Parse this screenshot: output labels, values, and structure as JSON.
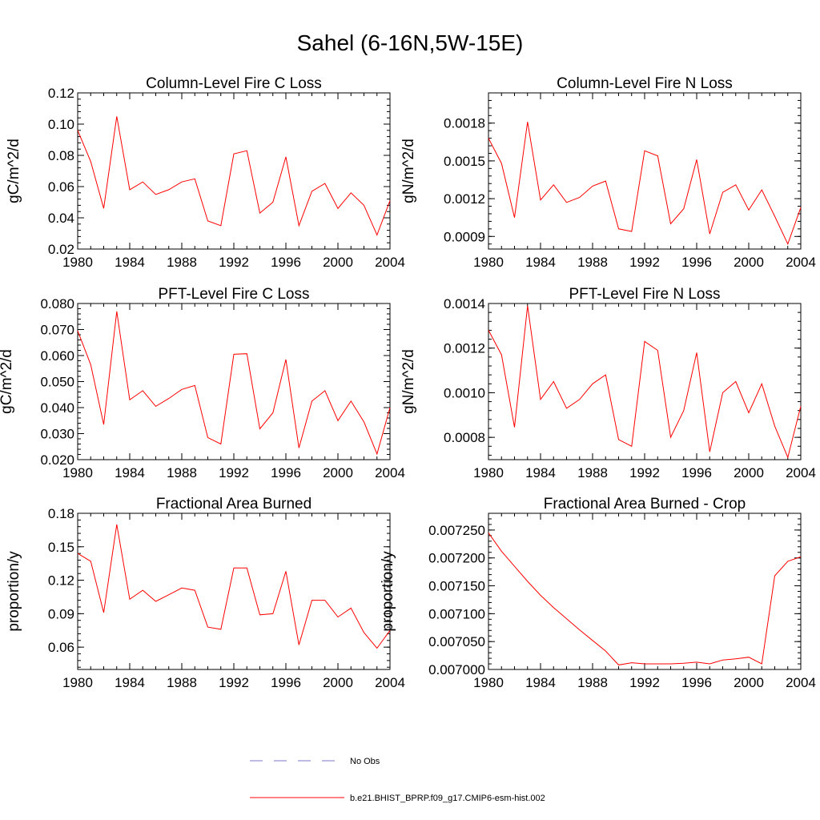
{
  "title": "Sahel (6-16N,5W-15E)",
  "colors": {
    "series": "#ff0000",
    "obs": "#7777cc",
    "axis": "#000000"
  },
  "legend": {
    "obs_label": "No Obs",
    "series_label": "b.e21.BHIST_BPRP.f09_g17.CMIP6-esm-hist.002"
  },
  "chart_data": [
    {
      "type": "line",
      "title": "Column-Level Fire C Loss",
      "ylabel": "gC/m^2/d",
      "xlabel": "",
      "xlim": [
        1980,
        2004
      ],
      "ylim": [
        0.02,
        0.12
      ],
      "xticks": [
        1980,
        1984,
        1988,
        1992,
        1996,
        2000,
        2004
      ],
      "yticks": [
        0.02,
        0.04,
        0.06,
        0.08,
        0.1,
        0.12
      ],
      "ytick_labels": [
        "0.02",
        "0.04",
        "0.06",
        "0.08",
        "0.10",
        "0.12"
      ],
      "x": [
        1980,
        1981,
        1982,
        1983,
        1984,
        1985,
        1986,
        1987,
        1988,
        1989,
        1990,
        1991,
        1992,
        1993,
        1994,
        1995,
        1996,
        1997,
        1998,
        1999,
        2000,
        2001,
        2002,
        2003,
        2004
      ],
      "series": [
        {
          "name": "b.e21.BHIST_BPRP.f09_g17.CMIP6-esm-hist.002",
          "values": [
            0.096,
            0.076,
            0.046,
            0.105,
            0.058,
            0.063,
            0.055,
            0.058,
            0.063,
            0.065,
            0.038,
            0.035,
            0.081,
            0.083,
            0.043,
            0.05,
            0.079,
            0.035,
            0.057,
            0.062,
            0.046,
            0.056,
            0.048,
            0.029,
            0.051
          ]
        }
      ]
    },
    {
      "type": "line",
      "title": "Column-Level Fire N Loss",
      "ylabel": "gN/m^2/d",
      "xlabel": "",
      "xlim": [
        1980,
        2004
      ],
      "ylim": [
        0.0008,
        0.00204
      ],
      "xticks": [
        1980,
        1984,
        1988,
        1992,
        1996,
        2000,
        2004
      ],
      "yticks": [
        0.0009,
        0.0012,
        0.0015,
        0.0018
      ],
      "ytick_labels": [
        "0.0009",
        "0.0012",
        "0.0015",
        "0.0018"
      ],
      "x": [
        1980,
        1981,
        1982,
        1983,
        1984,
        1985,
        1986,
        1987,
        1988,
        1989,
        1990,
        1991,
        1992,
        1993,
        1994,
        1995,
        1996,
        1997,
        1998,
        1999,
        2000,
        2001,
        2002,
        2003,
        2004
      ],
      "series": [
        {
          "name": "b.e21.BHIST_BPRP.f09_g17.CMIP6-esm-hist.002",
          "values": [
            0.00168,
            0.00148,
            0.00105,
            0.00181,
            0.00119,
            0.00131,
            0.00117,
            0.00121,
            0.0013,
            0.00134,
            0.00096,
            0.00094,
            0.00158,
            0.00154,
            0.001,
            0.00112,
            0.00151,
            0.00092,
            0.00125,
            0.00131,
            0.00111,
            0.00127,
            0.00106,
            0.00084,
            0.00113
          ]
        }
      ]
    },
    {
      "type": "line",
      "title": "PFT-Level Fire C Loss",
      "ylabel": "gC/m^2/d",
      "xlabel": "",
      "xlim": [
        1980,
        2004
      ],
      "ylim": [
        0.02,
        0.08
      ],
      "xticks": [
        1980,
        1984,
        1988,
        1992,
        1996,
        2000,
        2004
      ],
      "yticks": [
        0.02,
        0.03,
        0.04,
        0.05,
        0.06,
        0.07,
        0.08
      ],
      "ytick_labels": [
        "0.020",
        "0.030",
        "0.040",
        "0.050",
        "0.060",
        "0.070",
        "0.080"
      ],
      "x": [
        1980,
        1981,
        1982,
        1983,
        1984,
        1985,
        1986,
        1987,
        1988,
        1989,
        1990,
        1991,
        1992,
        1993,
        1994,
        1995,
        1996,
        1997,
        1998,
        1999,
        2000,
        2001,
        2002,
        2003,
        2004
      ],
      "series": [
        {
          "name": "b.e21.BHIST_BPRP.f09_g17.CMIP6-esm-hist.002",
          "values": [
            0.0695,
            0.0565,
            0.0335,
            0.077,
            0.043,
            0.0465,
            0.0405,
            0.0435,
            0.047,
            0.0485,
            0.0285,
            0.026,
            0.0605,
            0.0607,
            0.0318,
            0.038,
            0.0585,
            0.0245,
            0.0425,
            0.0465,
            0.035,
            0.0425,
            0.0345,
            0.0222,
            0.04
          ]
        }
      ]
    },
    {
      "type": "line",
      "title": "PFT-Level Fire N Loss",
      "ylabel": "gN/m^2/d",
      "xlabel": "",
      "xlim": [
        1980,
        2004
      ],
      "ylim": [
        0.0007,
        0.0014
      ],
      "xticks": [
        1980,
        1984,
        1988,
        1992,
        1996,
        2000,
        2004
      ],
      "yticks": [
        0.0008,
        0.001,
        0.0012,
        0.0014
      ],
      "ytick_labels": [
        "0.0008",
        "0.0010",
        "0.0012",
        "0.0014"
      ],
      "x": [
        1980,
        1981,
        1982,
        1983,
        1984,
        1985,
        1986,
        1987,
        1988,
        1989,
        1990,
        1991,
        1992,
        1993,
        1994,
        1995,
        1996,
        1997,
        1998,
        1999,
        2000,
        2001,
        2002,
        2003,
        2004
      ],
      "series": [
        {
          "name": "b.e21.BHIST_BPRP.f09_g17.CMIP6-esm-hist.002",
          "values": [
            0.00128,
            0.00117,
            0.000845,
            0.00139,
            0.00097,
            0.00105,
            0.00093,
            0.00097,
            0.00104,
            0.00108,
            0.00079,
            0.00076,
            0.00123,
            0.00119,
            0.0008,
            0.00092,
            0.00118,
            0.000735,
            0.001,
            0.00105,
            0.00091,
            0.00104,
            0.00085,
            0.00071,
            0.00094
          ]
        }
      ]
    },
    {
      "type": "line",
      "title": "Fractional Area Burned",
      "ylabel": "proportion/y",
      "xlabel": "",
      "xlim": [
        1980,
        2004
      ],
      "ylim": [
        0.04,
        0.18
      ],
      "xticks": [
        1980,
        1984,
        1988,
        1992,
        1996,
        2000,
        2004
      ],
      "yticks": [
        0.06,
        0.09,
        0.12,
        0.15,
        0.18
      ],
      "ytick_labels": [
        "0.06",
        "0.09",
        "0.12",
        "0.15",
        "0.18"
      ],
      "x": [
        1980,
        1981,
        1982,
        1983,
        1984,
        1985,
        1986,
        1987,
        1988,
        1989,
        1990,
        1991,
        1992,
        1993,
        1994,
        1995,
        1996,
        1997,
        1998,
        1999,
        2000,
        2001,
        2002,
        2003,
        2004
      ],
      "series": [
        {
          "name": "b.e21.BHIST_BPRP.f09_g17.CMIP6-esm-hist.002",
          "values": [
            0.144,
            0.137,
            0.091,
            0.17,
            0.103,
            0.111,
            0.101,
            0.107,
            0.113,
            0.111,
            0.078,
            0.076,
            0.131,
            0.131,
            0.089,
            0.09,
            0.128,
            0.062,
            0.102,
            0.102,
            0.087,
            0.095,
            0.073,
            0.059,
            0.075
          ]
        }
      ]
    },
    {
      "type": "line",
      "title": "Fractional Area Burned - Crop",
      "ylabel": "proportion/y",
      "xlabel": "",
      "xlim": [
        1980,
        2004
      ],
      "ylim": [
        0.007,
        0.00728
      ],
      "xticks": [
        1980,
        1984,
        1988,
        1992,
        1996,
        2000,
        2004
      ],
      "yticks": [
        0.007,
        0.00705,
        0.0071,
        0.00715,
        0.0072,
        0.00725
      ],
      "ytick_labels": [
        "0.007000",
        "0.007050",
        "0.007100",
        "0.007150",
        "0.007200",
        "0.007250"
      ],
      "x": [
        1980,
        1981,
        1982,
        1983,
        1984,
        1985,
        1986,
        1987,
        1988,
        1989,
        1990,
        1991,
        1992,
        1993,
        1994,
        1995,
        1996,
        1997,
        1998,
        1999,
        2000,
        2001,
        2002,
        2003,
        2004
      ],
      "series": [
        {
          "name": "b.e21.BHIST_BPRP.f09_g17.CMIP6-esm-hist.002",
          "values": [
            0.007245,
            0.007212,
            0.007185,
            0.007158,
            0.007133,
            0.007111,
            0.007091,
            0.007071,
            0.007052,
            0.007033,
            0.007008,
            0.007012,
            0.00701,
            0.00701,
            0.00701,
            0.007011,
            0.007013,
            0.00701,
            0.007017,
            0.007019,
            0.007022,
            0.00701,
            0.007168,
            0.007194,
            0.007202
          ]
        }
      ]
    }
  ]
}
